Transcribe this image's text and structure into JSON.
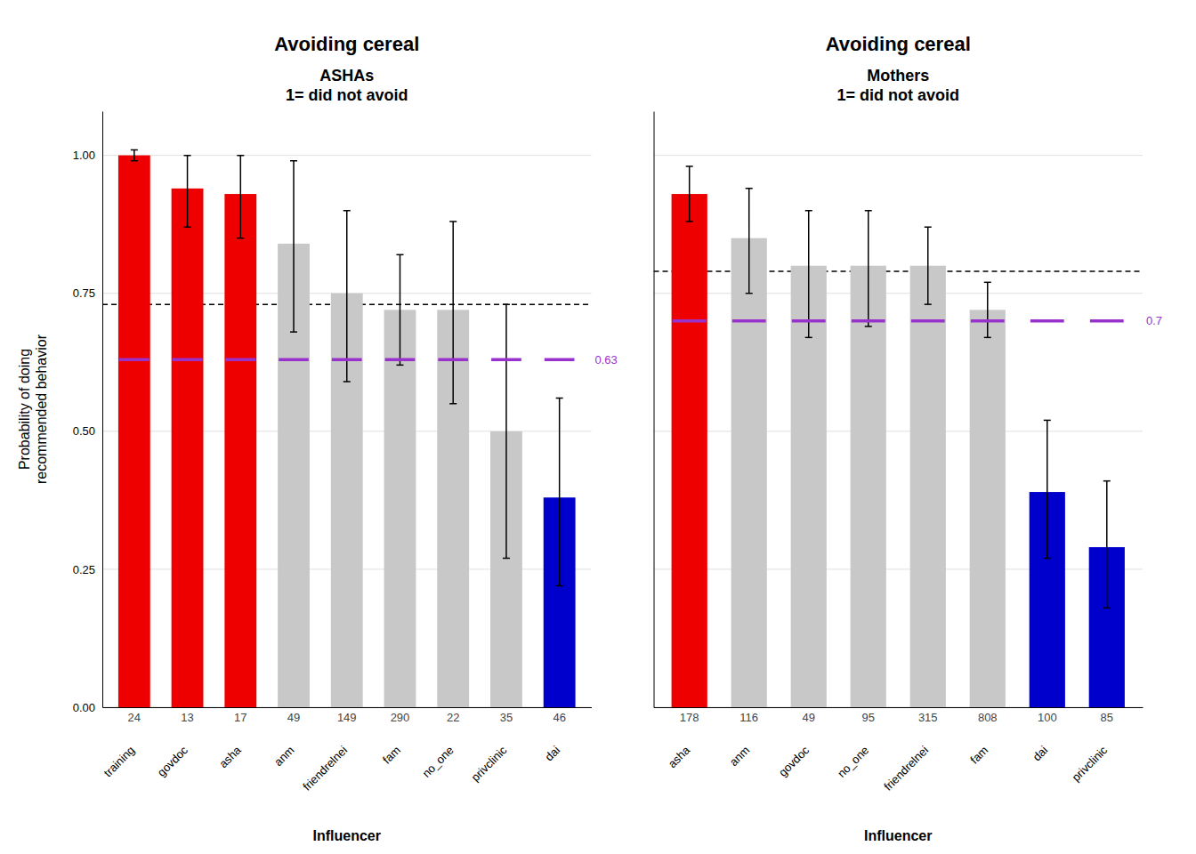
{
  "chart_data": [
    {
      "type": "bar",
      "title": "Avoiding cereal",
      "subtitle": "ASHAs\n1= did not avoid",
      "categories": [
        "training",
        "govdoc",
        "asha",
        "anm",
        "friendrelnei",
        "fam",
        "no_one",
        "privclinic",
        "dai"
      ],
      "values": [
        1.0,
        0.94,
        0.93,
        0.84,
        0.75,
        0.72,
        0.72,
        0.5,
        0.38
      ],
      "ci_low": [
        0.99,
        0.87,
        0.85,
        0.68,
        0.59,
        0.62,
        0.55,
        0.27,
        0.22
      ],
      "ci_high": [
        1.01,
        1.0,
        1.0,
        0.99,
        0.9,
        0.82,
        0.88,
        0.73,
        0.56
      ],
      "ns": [
        24,
        13,
        17,
        49,
        149,
        290,
        22,
        35,
        46
      ],
      "colors": [
        "#EE0000",
        "#EE0000",
        "#EE0000",
        "#C8C8C8",
        "#C8C8C8",
        "#C8C8C8",
        "#C8C8C8",
        "#C8C8C8",
        "#0000CC"
      ],
      "dashed_line": 0.73,
      "purple_line": {
        "value": 0.63,
        "label": "0.63",
        "color": "#9932CC"
      },
      "xlabel": "Influencer",
      "ylabel": "Probability of doing\nrecommended behavior",
      "ylim": [
        0,
        1.08
      ],
      "yticks": [
        {
          "value": 0,
          "label": "0.00"
        },
        {
          "value": 0.25,
          "label": "0.25"
        },
        {
          "value": 0.5,
          "label": "0.50"
        },
        {
          "value": 0.75,
          "label": "0.75"
        },
        {
          "value": 1,
          "label": "1.00"
        }
      ],
      "grid": true
    },
    {
      "type": "bar",
      "title": "Avoiding cereal",
      "subtitle": "Mothers\n1= did not avoid",
      "categories": [
        "asha",
        "anm",
        "govdoc",
        "no_one",
        "friendrelnei",
        "fam",
        "dai",
        "privclinic"
      ],
      "values": [
        0.93,
        0.85,
        0.8,
        0.8,
        0.8,
        0.72,
        0.39,
        0.29
      ],
      "ci_low": [
        0.88,
        0.75,
        0.67,
        0.69,
        0.73,
        0.67,
        0.27,
        0.18
      ],
      "ci_high": [
        0.98,
        0.94,
        0.9,
        0.9,
        0.87,
        0.77,
        0.52,
        0.41
      ],
      "ns": [
        178,
        116,
        49,
        95,
        315,
        808,
        100,
        85
      ],
      "colors": [
        "#EE0000",
        "#C8C8C8",
        "#C8C8C8",
        "#C8C8C8",
        "#C8C8C8",
        "#C8C8C8",
        "#0000CC",
        "#0000CC"
      ],
      "dashed_line": 0.79,
      "purple_line": {
        "value": 0.7,
        "label": "0.7",
        "color": "#9932CC"
      },
      "xlabel": "Influencer",
      "ylim": [
        0,
        1.08
      ],
      "yticks": [
        0,
        0.25,
        0.5,
        0.75,
        1
      ],
      "tick_labels": "x",
      "grid": true
    }
  ]
}
